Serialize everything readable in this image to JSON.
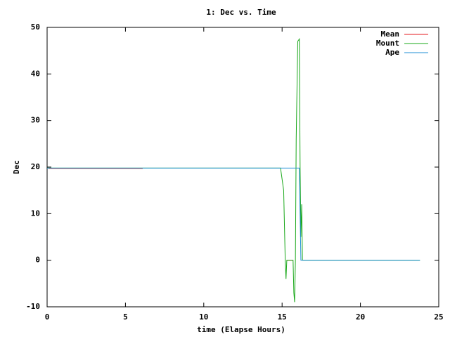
{
  "chart_data": {
    "type": "line",
    "title": "1: Dec vs. Time",
    "x_label": "time (Elapse Hours)",
    "y_label": "Dec",
    "xlim": [
      0,
      25
    ],
    "xticks": [
      0,
      5,
      10,
      15,
      20,
      25
    ],
    "ylim": [
      -10,
      50
    ],
    "yticks": [
      -10,
      0,
      10,
      20,
      30,
      40,
      50
    ],
    "grid": false,
    "legend": "top-right",
    "series": [
      {
        "name": "Mean",
        "color": "#e41a1c",
        "x": [
          0.1,
          6.1,
          6.2,
          15.3,
          15.7
        ],
        "values": [
          19.7,
          19.7,
          null,
          0,
          0
        ]
      },
      {
        "name": "Mount",
        "color": "#1aa81a",
        "x": [
          0,
          14.9,
          15.1,
          15.2,
          15.25,
          15.3,
          15.7,
          15.75,
          15.8,
          15.85,
          15.9,
          16.0,
          16.1,
          16.15,
          16.2,
          16.25,
          16.3,
          23.8
        ],
        "values": [
          19.8,
          19.8,
          15,
          0,
          -4,
          0,
          0,
          -7,
          -9,
          0,
          26,
          47,
          47.5,
          20,
          5,
          12,
          0,
          0
        ]
      },
      {
        "name": "Ape",
        "color": "#1f8fd6",
        "x": [
          0,
          16.1,
          16.2,
          23.8
        ],
        "values": [
          19.8,
          19.8,
          0,
          0
        ]
      }
    ]
  }
}
